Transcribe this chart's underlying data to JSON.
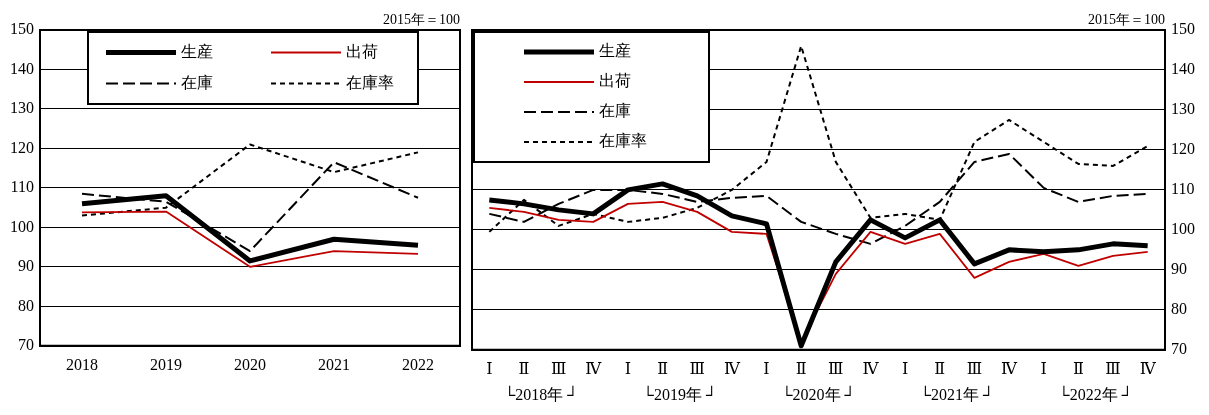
{
  "chart_data": [
    {
      "type": "line",
      "subtitle": "2015年＝100",
      "categories": [
        "2018",
        "2019",
        "2020",
        "2021",
        "2022"
      ],
      "series": [
        {
          "name": "生産",
          "color": "#000000",
          "line_style": "solid",
          "values": [
            106,
            108,
            91.5,
            97,
            95.5
          ]
        },
        {
          "name": "出荷",
          "color": "#c00000",
          "line_style": "solid",
          "values": [
            103.8,
            104,
            90,
            94,
            93.3
          ]
        },
        {
          "name": "在庫",
          "color": "#000000",
          "line_style": "dashed",
          "values": [
            108.5,
            106.5,
            94,
            116.5,
            107.5
          ]
        },
        {
          "name": "在庫率",
          "color": "#000000",
          "line_style": "dotted",
          "values": [
            103,
            105,
            121,
            114,
            119
          ]
        }
      ],
      "ylim": [
        70,
        150
      ],
      "yticks": [
        70,
        80,
        90,
        100,
        110,
        120,
        130,
        140,
        150
      ],
      "grid": "y",
      "legend": "top left",
      "marker": "none"
    },
    {
      "type": "line",
      "subtitle": "2015年＝100",
      "categories": [
        "Ⅰ",
        "Ⅱ",
        "Ⅲ",
        "Ⅳ",
        "Ⅰ",
        "Ⅱ",
        "Ⅲ",
        "Ⅳ",
        "Ⅰ",
        "Ⅱ",
        "Ⅲ",
        "Ⅳ",
        "Ⅰ",
        "Ⅱ",
        "Ⅲ",
        "Ⅳ",
        "Ⅰ",
        "Ⅱ",
        "Ⅲ",
        "Ⅳ"
      ],
      "series": [
        {
          "name": "生産",
          "color": "#000000",
          "line_style": "solid",
          "axis": "y2",
          "values": [
            107.5,
            106.5,
            105,
            104,
            110,
            111.5,
            108.5,
            103.5,
            101.5,
            71,
            92,
            102.5,
            98,
            102.5,
            91.5,
            95,
            94.5,
            95,
            96.5,
            96
          ]
        },
        {
          "name": "出荷",
          "color": "#c00000",
          "line_style": "solid",
          "axis": "y2",
          "values": [
            105.5,
            104.5,
            102.5,
            102,
            106.5,
            107,
            104.5,
            99.5,
            99,
            72,
            89,
            99.5,
            96.5,
            99,
            88,
            92,
            94,
            91,
            93.5,
            94.5
          ]
        },
        {
          "name": "在庫",
          "color": "#000000",
          "line_style": "dashed",
          "axis": "y2",
          "values": [
            104,
            102,
            106.5,
            110,
            110,
            109,
            107,
            108,
            108.5,
            102,
            99,
            96.5,
            101,
            107,
            117,
            119,
            110.5,
            107,
            108.5,
            109
          ]
        },
        {
          "name": "在庫率",
          "color": "#000000",
          "line_style": "dotted",
          "axis": "y2",
          "values": [
            99.5,
            107.5,
            101,
            104,
            102,
            103,
            105.5,
            110,
            117,
            146,
            117,
            103,
            104,
            102.5,
            122,
            127.5,
            122,
            116.5,
            116,
            121
          ]
        }
      ],
      "y2lim": [
        70,
        150
      ],
      "y2ticks": [
        70,
        80,
        90,
        100,
        110,
        120,
        130,
        140,
        150
      ],
      "grid": "y",
      "legend": "top left",
      "marker": "none",
      "annotations": [
        "└2018年 ┘",
        "└2019年 ┘",
        "└2020年 ┘",
        "└2021年 ┘",
        "└2022年 ┘"
      ]
    }
  ]
}
